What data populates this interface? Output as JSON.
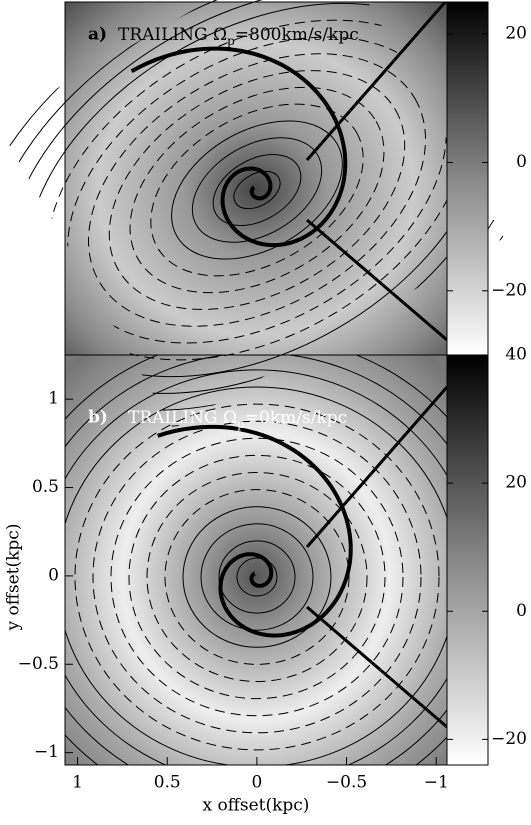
{
  "chart_data": [
    {
      "type": "contour",
      "label": "a)",
      "title": {
        "main": "TRAILING Ω",
        "sub": "p",
        "rest": "=800km/s/kpc"
      },
      "colorbar": {
        "lim": [
          -30,
          25
        ],
        "ticks": [
          {
            "value": -20,
            "label": "−20"
          },
          0,
          20
        ]
      }
    },
    {
      "type": "contour",
      "label": "b)",
      "title": {
        "main": "TRAILING Ω",
        "sub": "p",
        "rest": "=0km/s/kpc"
      },
      "xlabel": "x offset(kpc)",
      "ylabel": "y offset(kpc)",
      "xlim": [
        1.07,
        -1.06
      ],
      "xticks": [
        1,
        0.5,
        0,
        {
          "value": -0.5,
          "label": "−0.5"
        },
        {
          "value": -1,
          "label": "−1"
        }
      ],
      "ylim": [
        -1.07,
        1.25
      ],
      "yticks": [
        {
          "value": -1,
          "label": "−1"
        },
        {
          "value": -0.5,
          "label": "−0.5"
        },
        0,
        0.5,
        1
      ],
      "colorbar": {
        "lim": [
          -24,
          40
        ],
        "ticks": [
          {
            "value": -20,
            "label": "−20"
          },
          0,
          20,
          40
        ]
      }
    }
  ]
}
